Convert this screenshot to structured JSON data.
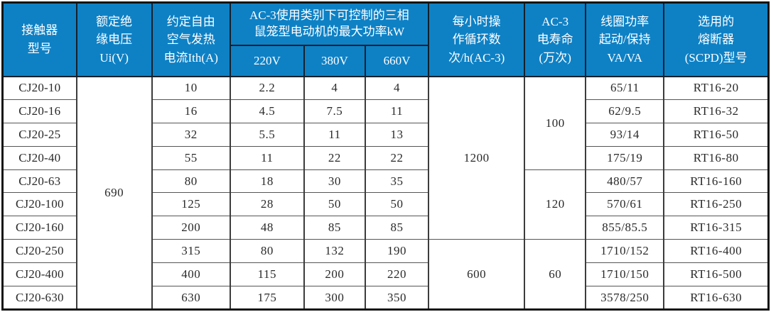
{
  "table": {
    "title_semantic": "CJ20 contactor specification table",
    "colors": {
      "header_bg": "#0e81c5",
      "header_text": "#ffffff",
      "grid": "#3c3c3c",
      "body_text": "#2a2a2a"
    },
    "header": {
      "model": "接触器\n型号",
      "ui": "额定绝\n缘电压\nUi(V)",
      "ith": "约定自由\n空气发热\n电流Ith(A)",
      "ac3_group": "AC-3使用类别下可控制的三相\n鼠笼型电动机的最大功率kW",
      "v220": "220V",
      "v380": "380V",
      "v660": "660V",
      "cycles": "每小时操\n作循环数\n次/h(AC-3)",
      "life": "AC-3\n电寿命\n(万次)",
      "coil": "线圈功率\n起动/保持\nVA/VA",
      "fuse": "选用的\n熔断器\n(SCPD)型号"
    },
    "merged": {
      "ui": {
        "value": "690",
        "row": 0,
        "rowspan": 10
      },
      "cycles": [
        {
          "value": "1200",
          "row": 0,
          "rowspan": 7
        },
        {
          "value": "600",
          "row": 7,
          "rowspan": 3
        }
      ],
      "life": [
        {
          "value": "100",
          "row": 0,
          "rowspan": 4
        },
        {
          "value": "120",
          "row": 4,
          "rowspan": 3
        },
        {
          "value": "60",
          "row": 7,
          "rowspan": 3
        }
      ]
    },
    "rows": [
      {
        "model": "CJ20-10",
        "ith": "10",
        "p220": "2.2",
        "p380": "4",
        "p660": "4",
        "coil": "65/11",
        "fuse": "RT16-20"
      },
      {
        "model": "CJ20-16",
        "ith": "16",
        "p220": "4.5",
        "p380": "7.5",
        "p660": "11",
        "coil": "62/9.5",
        "fuse": "RT16-32"
      },
      {
        "model": "CJ20-25",
        "ith": "32",
        "p220": "5.5",
        "p380": "11",
        "p660": "13",
        "coil": "93/14",
        "fuse": "RT16-50"
      },
      {
        "model": "CJ20-40",
        "ith": "55",
        "p220": "11",
        "p380": "22",
        "p660": "22",
        "coil": "175/19",
        "fuse": "RT16-80"
      },
      {
        "model": "CJ20-63",
        "ith": "80",
        "p220": "18",
        "p380": "30",
        "p660": "35",
        "coil": "480/57",
        "fuse": "RT16-160"
      },
      {
        "model": "CJ20-100",
        "ith": "125",
        "p220": "28",
        "p380": "50",
        "p660": "50",
        "coil": "570/61",
        "fuse": "RT16-250"
      },
      {
        "model": "CJ20-160",
        "ith": "200",
        "p220": "48",
        "p380": "85",
        "p660": "85",
        "coil": "855/85.5",
        "fuse": "RT16-315"
      },
      {
        "model": "CJ20-250",
        "ith": "315",
        "p220": "80",
        "p380": "132",
        "p660": "190",
        "coil": "1710/152",
        "fuse": "RT16-400"
      },
      {
        "model": "CJ20-400",
        "ith": "400",
        "p220": "115",
        "p380": "200",
        "p660": "220",
        "coil": "1710/150",
        "fuse": "RT16-500"
      },
      {
        "model": "CJ20-630",
        "ith": "630",
        "p220": "175",
        "p380": "300",
        "p660": "350",
        "coil": "3578/250",
        "fuse": "RT16-630"
      }
    ]
  }
}
